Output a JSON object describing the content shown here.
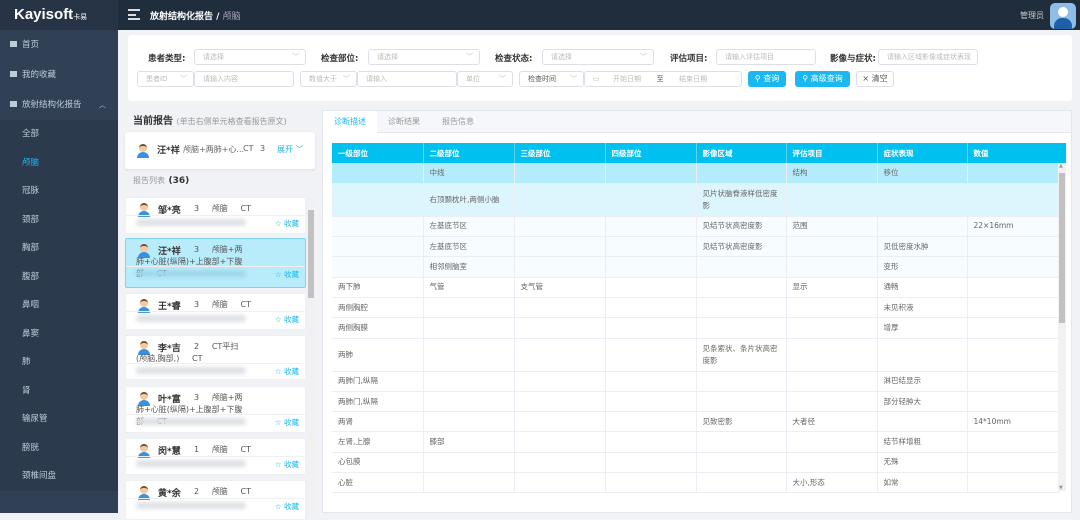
{
  "header": {
    "logo": "Kayisoft",
    "logo_sub": "卡易",
    "breadcrumb": [
      "放射结构化报告",
      "颅脑"
    ],
    "user": "管理员"
  },
  "sidebar": {
    "items": [
      {
        "label": "首页",
        "icon": "home-icon"
      },
      {
        "label": "我的收藏",
        "icon": "folder-icon"
      },
      {
        "label": "放射结构化报告",
        "icon": "document-icon",
        "expanded": true
      }
    ],
    "sub_items": [
      "全部",
      "颅脑",
      "冠脉",
      "颈部",
      "胸部",
      "腹部",
      "鼻咽",
      "鼻窦",
      "肺",
      "肾",
      "输尿管",
      "膀胱",
      "颈椎间盘"
    ],
    "active": "颅脑"
  },
  "filters": {
    "patient_type": {
      "label": "患者类型:",
      "placeholder": "请选择"
    },
    "exam_part": {
      "label": "检查部位:",
      "placeholder": "请选择"
    },
    "exam_status": {
      "label": "检查状态:",
      "placeholder": "请选择"
    },
    "eval_item": {
      "label": "评估项目:",
      "placeholder": "请输入评估项目"
    },
    "image_symptom": {
      "label": "影像与症状:",
      "placeholder": "请输入区域影像或症状表现"
    },
    "id_select": "患者ID",
    "id_placeholder": "请输入内容",
    "num_select": "数值大于",
    "num_placeholder": "请输入",
    "unit_placeholder": "单位",
    "time_select": "检查时间",
    "start_date": "开始日期",
    "date_sep": "至",
    "end_date": "结束日期",
    "search": "查询",
    "advanced": "高级查询",
    "clear": "清空"
  },
  "current_report": {
    "title": "当前报告",
    "hint": "(单击右侧单元格查看报告原文)",
    "name": "汪*祥",
    "parts": "颅脑+两肺+心...",
    "modality": "CT",
    "count": "3",
    "expand": "展开"
  },
  "report_list": {
    "title": "报告列表",
    "count": "(36)",
    "fav_label": "☆ 收藏",
    "items": [
      {
        "name": "邹*亮",
        "count": "3",
        "parts": "颅脑",
        "modality": "CT"
      },
      {
        "name": "汪*祥",
        "count": "3",
        "parts": "颅脑+两肺+心脏(纵隔)+上腹部+下腹部",
        "modality": "CT",
        "selected": true
      },
      {
        "name": "王*睿",
        "count": "3",
        "parts": "颅脑",
        "modality": "CT"
      },
      {
        "name": "李*吉",
        "count": "2",
        "parts": "CT平扫(颅脑,胸部,)",
        "modality": "CT"
      },
      {
        "name": "叶*富",
        "count": "3",
        "parts": "颅脑+两肺+心脏(纵隔)+上腹部+下腹部",
        "modality": "CT"
      },
      {
        "name": "闵*慧",
        "count": "1",
        "parts": "颅脑",
        "modality": "CT"
      },
      {
        "name": "黄*余",
        "count": "2",
        "parts": "颅脑",
        "modality": "CT"
      }
    ]
  },
  "tabs": [
    "诊断描述",
    "诊断结果",
    "报告信息"
  ],
  "table": {
    "columns": [
      "一级部位",
      "二级部位",
      "三级部位",
      "四级部位",
      "影像区域",
      "评估项目",
      "症状表现",
      "数值"
    ],
    "rows": [
      [
        "",
        "中线",
        "",
        "",
        "",
        "结构",
        "移位",
        ""
      ],
      [
        "",
        "右顶颞枕叶,两侧小脑",
        "",
        "",
        "见片状脑脊液样低密度影",
        "",
        "",
        ""
      ],
      [
        "",
        "左基底节区",
        "",
        "",
        "见结节状高密度影",
        "范围",
        "",
        "22×16mm"
      ],
      [
        "",
        "左基底节区",
        "",
        "",
        "见结节状高密度影",
        "",
        "见低密度水肿",
        ""
      ],
      [
        "",
        "相邻侧脑室",
        "",
        "",
        "",
        "",
        "变形",
        ""
      ],
      [
        "两下肺",
        "气管",
        "支气管",
        "",
        "",
        "显示",
        "通畅",
        ""
      ],
      [
        "两侧胸腔",
        "",
        "",
        "",
        "",
        "",
        "未见积液",
        ""
      ],
      [
        "两侧胸膜",
        "",
        "",
        "",
        "",
        "",
        "增厚",
        ""
      ],
      [
        "两肺",
        "",
        "",
        "",
        "见条索状、条片状高密度影",
        "",
        "",
        ""
      ],
      [
        "两肺门,纵隔",
        "",
        "",
        "",
        "",
        "",
        "淋巴结显示",
        ""
      ],
      [
        "两肺门,纵隔",
        "",
        "",
        "",
        "",
        "",
        "部分轻肿大",
        ""
      ],
      [
        "两肾",
        "",
        "",
        "",
        "见致密影",
        "大者径",
        "",
        "14*10mm"
      ],
      [
        "左肾,上腺",
        "膝部",
        "",
        "",
        "",
        "",
        "结节样增粗",
        ""
      ],
      [
        "心包膜",
        "",
        "",
        "",
        "",
        "",
        "无殊",
        ""
      ],
      [
        "心脏",
        "",
        "",
        "",
        "",
        "大小,形态",
        "如常",
        ""
      ]
    ]
  },
  "colors": {
    "accent": "#1ab8f0",
    "sidebar": "#304156",
    "topbar": "#1f2d3d",
    "table_header": "#00c0f0"
  }
}
